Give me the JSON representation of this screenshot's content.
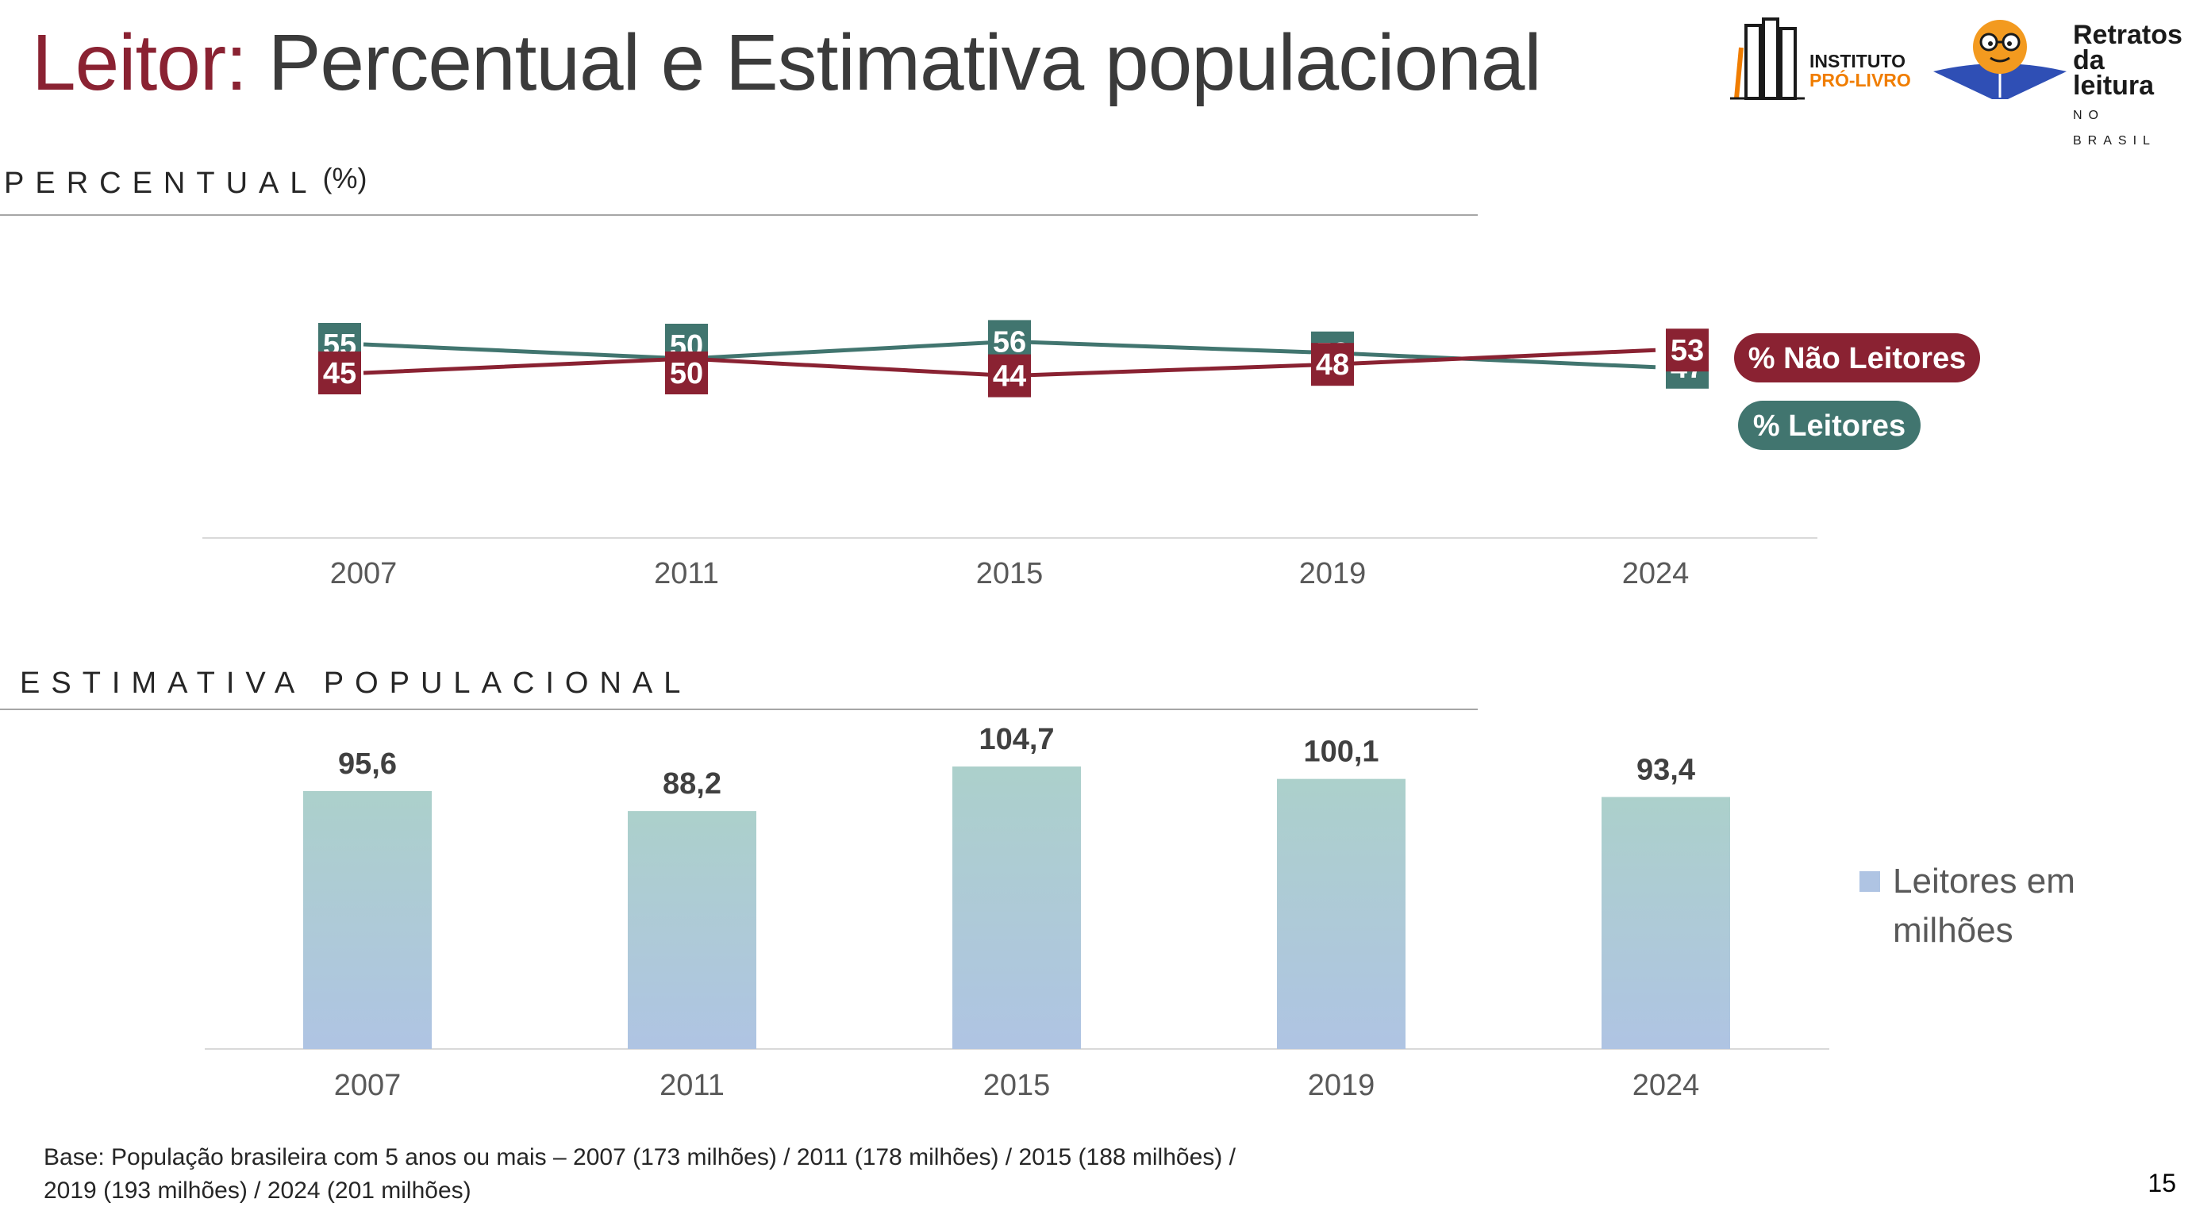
{
  "title": {
    "accent": "Leitor:",
    "rest": " Percentual e Estimativa populacional"
  },
  "logos": {
    "ipl": {
      "line1": "INSTITUTO",
      "line2": "PRÓ-LIVRO"
    },
    "rdl": {
      "line1": "Retratos",
      "line2": "da leitura",
      "line3": "NO BRASIL"
    }
  },
  "sections": {
    "percentual": {
      "label": "PERCENTUAL",
      "unit": "(%)"
    },
    "estimativa": {
      "label": "ESTIMATIVA POPULACIONAL"
    }
  },
  "chart_data": [
    {
      "type": "line",
      "x": [
        "2007",
        "2011",
        "2015",
        "2019",
        "2024"
      ],
      "series": [
        {
          "name": "% Leitores",
          "values": [
            55,
            50,
            56,
            52,
            47
          ],
          "labels": [
            "55",
            "50",
            "56",
            "52",
            "47"
          ],
          "color": "#41756f"
        },
        {
          "name": "% Não Leitores",
          "values": [
            45,
            50,
            44,
            48,
            53
          ],
          "labels": [
            "45",
            "50",
            "44",
            "48",
            "53"
          ],
          "color": "#8a2232"
        }
      ]
    },
    {
      "type": "bar",
      "categories": [
        "2007",
        "2011",
        "2015",
        "2019",
        "2024"
      ],
      "values": [
        95.6,
        88.2,
        104.7,
        100.1,
        93.4
      ],
      "labels": [
        "95,6",
        "88,2",
        "104,7",
        "100,1",
        "93,4"
      ],
      "series_name": "Leitores em milhões",
      "colors": {
        "top": "#acd0cb",
        "bottom": "#afc4e3"
      }
    }
  ],
  "footnote": {
    "line1": "Base: População brasileira com 5 anos ou mais – 2007 (173 milhões) / 2011 (178 milhões) / 2015 (188 milhões) /",
    "line2": "2019 (193 milhões) / 2024 (201 milhões)"
  },
  "page_number": "15"
}
